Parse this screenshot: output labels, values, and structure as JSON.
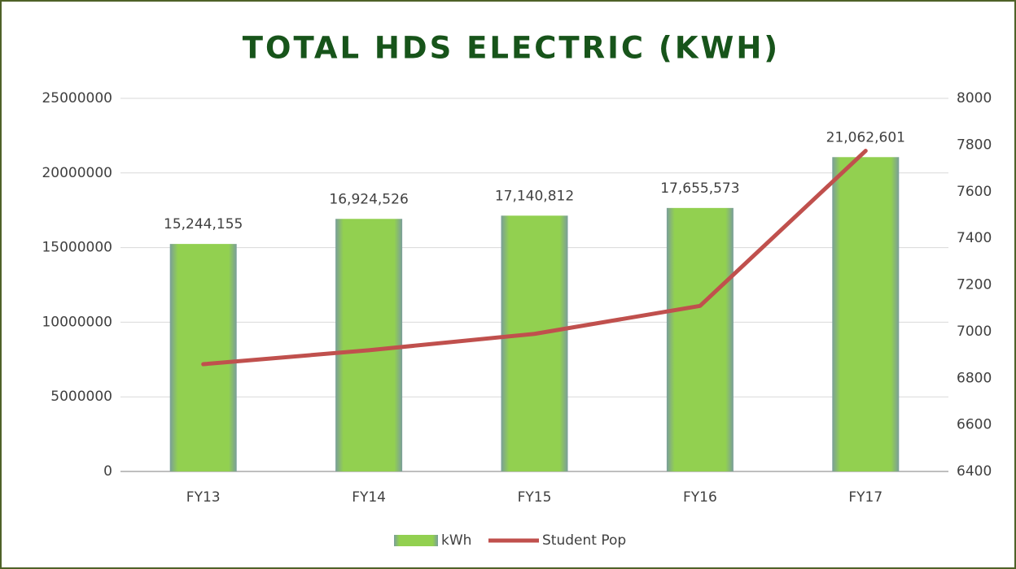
{
  "chart_data": {
    "type": "bar",
    "title": "TOTAL HDS ELECTRIC (KWH)",
    "categories": [
      "FY13",
      "FY14",
      "FY15",
      "FY16",
      "FY17"
    ],
    "series": [
      {
        "name": "kWh",
        "type": "bar",
        "color": "#92d050",
        "values": [
          15244155,
          16924526,
          17140812,
          17655573,
          21062601
        ],
        "value_labels": [
          "15,244,155",
          "16,924,526",
          "17,140,812",
          "17,655,573",
          "21,062,601"
        ]
      },
      {
        "name": "Student Pop",
        "type": "line",
        "axis": "y2",
        "color": "#c0504d",
        "values": [
          6860,
          6920,
          6990,
          7110,
          7775
        ]
      }
    ],
    "ylim": [
      0,
      25000000
    ],
    "yticks": [
      0,
      5000000,
      10000000,
      15000000,
      20000000,
      25000000
    ],
    "y2lim": [
      6400,
      8000
    ],
    "y2ticks": [
      6400,
      6600,
      6800,
      7000,
      7200,
      7400,
      7600,
      7800,
      8000
    ],
    "grid": true,
    "legend": "bottom"
  }
}
